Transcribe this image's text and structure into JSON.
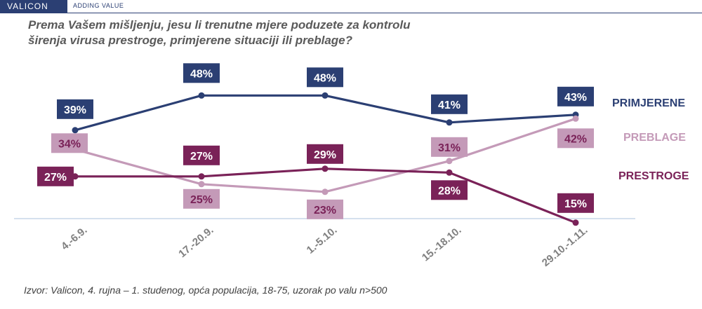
{
  "brand": {
    "logo": "VALICON",
    "tagline": "ADDING VALUE"
  },
  "question": "Prema Vašem mišljenju, jesu li trenutne mjere poduzete za kontrolu\nširenja virusa  prestroge, primjerene situaciji ili preblage?",
  "source": "Izvor: Valicon, 4. rujna – 1. studenog, opća populacija, 18-75, uzorak po valu n>500",
  "colors": {
    "primjerene": "#2b3f73",
    "preblage": "#c49ab8",
    "prestroge": "#7a2258",
    "axis": "#c7d6e8",
    "tick": "#808080"
  },
  "chart_data": {
    "type": "line",
    "categories": [
      "4.-6.9.",
      "17.-20.9.",
      "1.-5.10.",
      "15.-18.10.",
      "29.10.-1.11."
    ],
    "ylim": [
      0,
      60
    ],
    "grid": false,
    "series": [
      {
        "name": "PRIMJERENE",
        "values": [
          39,
          48,
          48,
          41,
          43
        ],
        "labels": [
          "39%",
          "48%",
          "48%",
          "41%",
          "43%"
        ],
        "color": "#2b3f73"
      },
      {
        "name": "PREBLAGE",
        "values": [
          34,
          25,
          23,
          31,
          42
        ],
        "labels": [
          "34%",
          "25%",
          "23%",
          "31%",
          "42%"
        ],
        "color": "#c49ab8"
      },
      {
        "name": "PRESTROGE",
        "values": [
          27,
          27,
          29,
          28,
          15
        ],
        "labels": [
          "27%",
          "27%",
          "29%",
          "28%",
          "15%"
        ],
        "color": "#7a2258"
      }
    ]
  }
}
